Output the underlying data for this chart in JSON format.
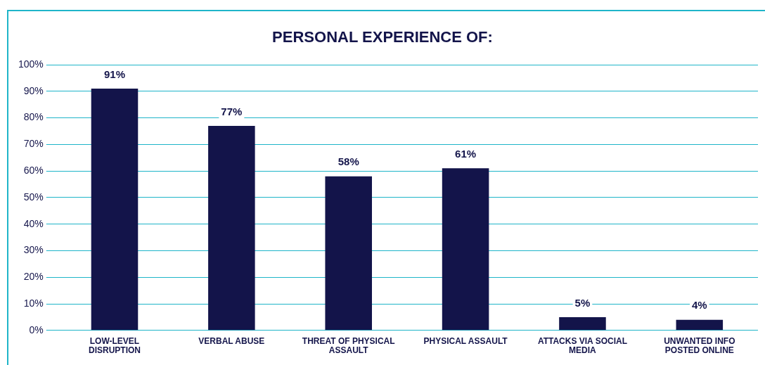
{
  "chart_data": {
    "type": "bar",
    "title": "PERSONAL EXPERIENCE OF:",
    "categories": [
      "LOW-LEVEL DISRUPTION",
      "VERBAL ABUSE",
      "THREAT OF PHYSICAL ASSAULT",
      "PHYSICAL ASSAULT",
      "ATTACKS VIA SOCIAL MEDIA",
      "UNWANTED INFO POSTED ONLINE"
    ],
    "values": [
      91,
      77,
      58,
      61,
      5,
      4
    ],
    "value_labels": [
      "91%",
      "77%",
      "58%",
      "61%",
      "5%",
      "4%"
    ],
    "color": "#13144a",
    "ylim": [
      0,
      100
    ],
    "yticks": [
      {
        "value": 0,
        "label": "0%"
      },
      {
        "value": 10,
        "label": "10%"
      },
      {
        "value": 20,
        "label": "20%"
      },
      {
        "value": 30,
        "label": "30%"
      },
      {
        "value": 40,
        "label": "40%"
      },
      {
        "value": 50,
        "label": "50%"
      },
      {
        "value": 60,
        "label": "60%"
      },
      {
        "value": 70,
        "label": "70%"
      },
      {
        "value": 80,
        "label": "80%"
      },
      {
        "value": 90,
        "label": "90%"
      },
      {
        "value": 100,
        "label": "100%"
      }
    ],
    "grid": "y"
  }
}
